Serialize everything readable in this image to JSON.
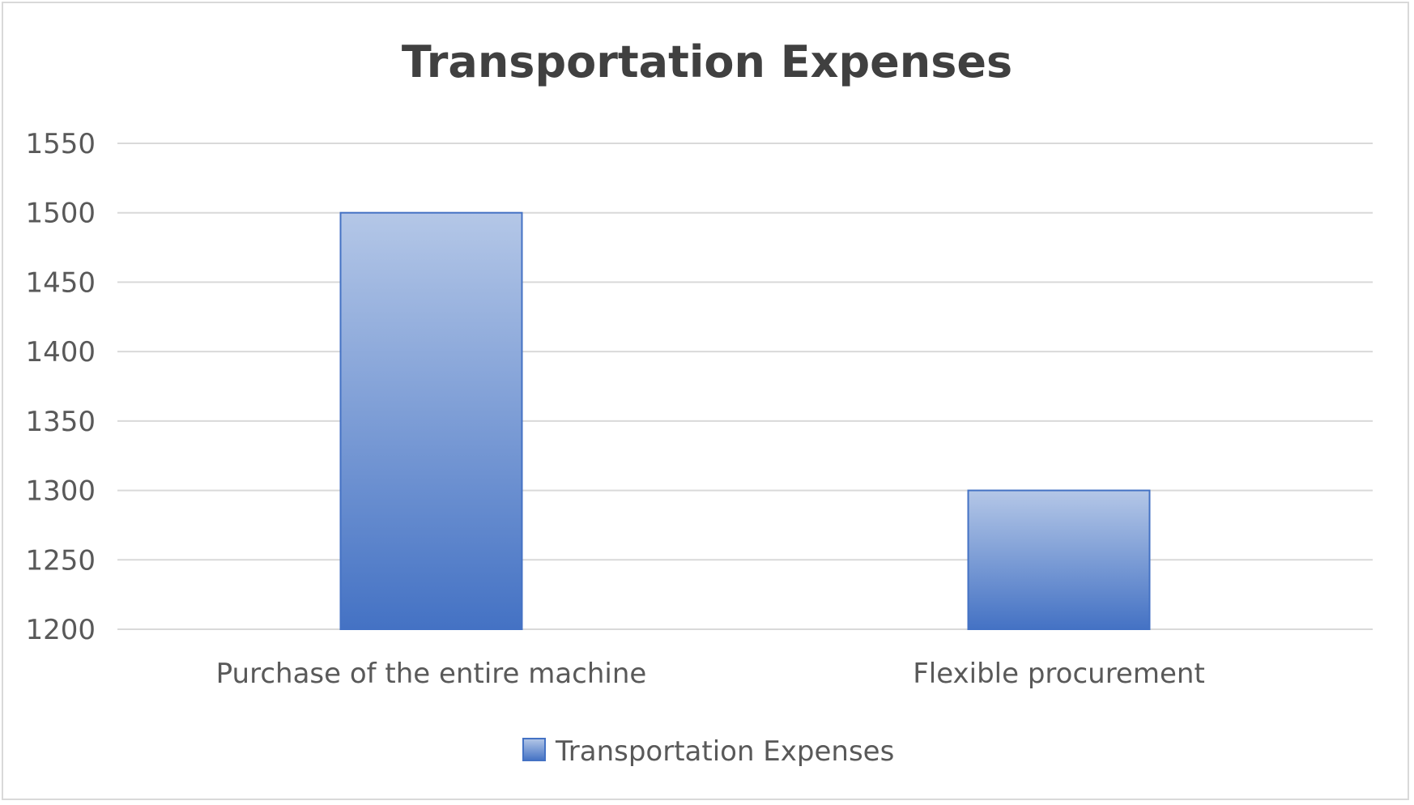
{
  "chart_data": {
    "type": "bar",
    "title": "Transportation Expenses",
    "categories": [
      "Purchase of the entire machine",
      "Flexible procurement"
    ],
    "series": [
      {
        "name": "Transportation Expenses",
        "values": [
          1500,
          1300
        ],
        "color": "#4472c4"
      }
    ],
    "ylim": [
      1200,
      1550
    ],
    "yticks": [
      1200,
      1250,
      1300,
      1350,
      1400,
      1450,
      1500,
      1550
    ],
    "grid": true,
    "legend": "bottom"
  }
}
